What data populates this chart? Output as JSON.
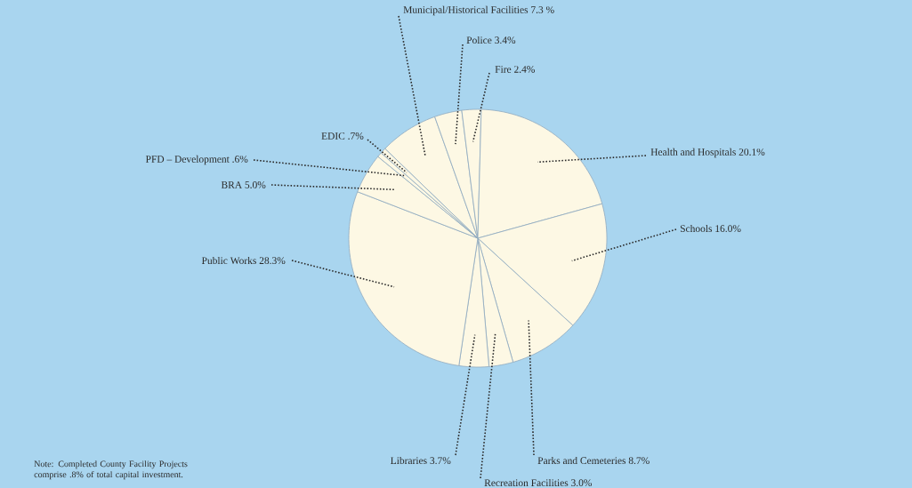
{
  "chart_data": {
    "type": "pie",
    "categories": [
      "Municipal/Historical Facilities",
      "Police",
      "Fire",
      "Health and Hospitals",
      "Schools",
      "Parks and Cemeteries",
      "Recreation Facilities",
      "Libraries",
      "Public Works",
      "BRA",
      "PFD – Development",
      "EDIC"
    ],
    "values": [
      7.3,
      3.4,
      2.4,
      20.1,
      16.0,
      8.7,
      3.0,
      3.7,
      28.3,
      5.0,
      0.6,
      0.7
    ],
    "value_labels": [
      "7.3 %",
      "3.4%",
      "2.4%",
      "20.1%",
      "16.0%",
      "8.7%",
      "3.0%",
      "3.7%",
      "28.3%",
      "5.0%",
      ".6%",
      ".7%"
    ],
    "colors": [
      "#fdf8e4",
      "#fdf8e4",
      "#fdf8e4",
      "#fdf8e4",
      "#fdf8e4",
      "#fdf8e4",
      "#fdf8e4",
      "#fdf8e4",
      "#fdf8e4",
      "#fdf8e4",
      "#fdf8e4",
      "#fdf8e4"
    ],
    "annotations": [
      "Note: Completed County Facility Projects comprise .8% of total capital investment."
    ]
  }
}
